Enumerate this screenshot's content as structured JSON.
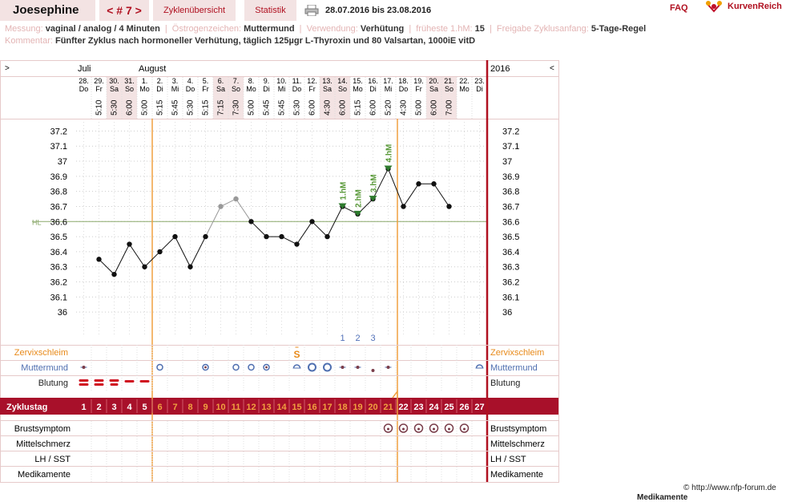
{
  "header": {
    "name": "Joesephine",
    "cycle_nav": "< # 7 >",
    "tab_overview": "Zyklenübersicht",
    "tab_stats": "Statistik",
    "date_range": "28.07.2016 bis 23.08.2016",
    "faq": "FAQ",
    "brand": "KurvenReich"
  },
  "info": {
    "messung_label": "Messung:",
    "messung_value": "vaginal / analog / 4 Minuten",
    "oestrogen_label": "Östrogenzeichen:",
    "oestrogen_value": "Muttermund",
    "verwendung_label": "Verwendung:",
    "verwendung_value": "Verhütung",
    "fruehest_label": "früheste 1.hM:",
    "fruehest_value": "15",
    "freigabe_label": "Freigabe Zyklusanfang:",
    "freigabe_value": "5-Tage-Regel",
    "kommentar_label": "Kommentar:",
    "kommentar_value": "Fünfter Zyklus nach hormoneller Verhütung, täglich 125µgr L-Thyroxin und 80 Valsartan, 1000iE vitD"
  },
  "chart_data": {
    "type": "line",
    "year": "2016",
    "nav_prev": ">",
    "nav_next": "<",
    "months": [
      {
        "label": "Juli",
        "start_index": 0
      },
      {
        "label": "August",
        "start_index": 4
      }
    ],
    "days": [
      {
        "date": "28.",
        "weekday": "Do",
        "time": "",
        "temp": null,
        "cycle_day": "1",
        "weekend": false
      },
      {
        "date": "29.",
        "weekday": "Fr",
        "time": "5:10",
        "temp": 36.35,
        "cycle_day": "2",
        "weekend": false
      },
      {
        "date": "30.",
        "weekday": "Sa",
        "time": "5:30",
        "temp": 36.25,
        "cycle_day": "3",
        "weekend": true
      },
      {
        "date": "31.",
        "weekday": "So",
        "time": "6:00",
        "temp": 36.45,
        "cycle_day": "4",
        "weekend": true
      },
      {
        "date": "1.",
        "weekday": "Mo",
        "time": "5:00",
        "temp": 36.3,
        "cycle_day": "5",
        "weekend": false
      },
      {
        "date": "2.",
        "weekday": "Di",
        "time": "5:15",
        "temp": 36.4,
        "cycle_day": "6",
        "weekend": false
      },
      {
        "date": "3.",
        "weekday": "Mi",
        "time": "5:45",
        "temp": 36.5,
        "cycle_day": "7",
        "weekend": false
      },
      {
        "date": "4.",
        "weekday": "Do",
        "time": "5:30",
        "temp": 36.3,
        "cycle_day": "8",
        "weekend": false
      },
      {
        "date": "5.",
        "weekday": "Fr",
        "time": "5:15",
        "temp": 36.5,
        "cycle_day": "9",
        "weekend": false
      },
      {
        "date": "6.",
        "weekday": "Sa",
        "time": "7:15",
        "temp": 36.7,
        "cycle_day": "10",
        "weekend": true,
        "excluded": true
      },
      {
        "date": "7.",
        "weekday": "So",
        "time": "7:30",
        "temp": 36.75,
        "cycle_day": "11",
        "weekend": true,
        "excluded": true
      },
      {
        "date": "8.",
        "weekday": "Mo",
        "time": "5:00",
        "temp": 36.6,
        "cycle_day": "12",
        "weekend": false
      },
      {
        "date": "9.",
        "weekday": "Di",
        "time": "5:45",
        "temp": 36.5,
        "cycle_day": "13",
        "weekend": false
      },
      {
        "date": "10.",
        "weekday": "Mi",
        "time": "5:45",
        "temp": 36.5,
        "cycle_day": "14",
        "weekend": false
      },
      {
        "date": "11.",
        "weekday": "Do",
        "time": "5:30",
        "temp": 36.45,
        "cycle_day": "15",
        "weekend": false
      },
      {
        "date": "12.",
        "weekday": "Fr",
        "time": "6:00",
        "temp": 36.6,
        "cycle_day": "16",
        "weekend": false
      },
      {
        "date": "13.",
        "weekday": "Sa",
        "time": "4:30",
        "temp": 36.5,
        "cycle_day": "17",
        "weekend": true
      },
      {
        "date": "14.",
        "weekday": "So",
        "time": "6:00",
        "temp": 36.7,
        "cycle_day": "18",
        "weekend": true
      },
      {
        "date": "15.",
        "weekday": "Mo",
        "time": "5:15",
        "temp": 36.65,
        "cycle_day": "19",
        "weekend": false
      },
      {
        "date": "16.",
        "weekday": "Di",
        "time": "6:00",
        "temp": 36.75,
        "cycle_day": "20",
        "weekend": false
      },
      {
        "date": "17.",
        "weekday": "Mi",
        "time": "5:20",
        "temp": 36.95,
        "cycle_day": "21",
        "weekend": false
      },
      {
        "date": "18.",
        "weekday": "Do",
        "time": "4:30",
        "temp": 36.7,
        "cycle_day": "22",
        "weekend": false
      },
      {
        "date": "19.",
        "weekday": "Fr",
        "time": "5:00",
        "temp": 36.85,
        "cycle_day": "23",
        "weekend": false
      },
      {
        "date": "20.",
        "weekday": "Sa",
        "time": "6:00",
        "temp": 36.85,
        "cycle_day": "24",
        "weekend": true
      },
      {
        "date": "21.",
        "weekday": "So",
        "time": "7:00",
        "temp": 36.7,
        "cycle_day": "25",
        "weekend": true
      },
      {
        "date": "22.",
        "weekday": "Mo",
        "time": "",
        "temp": null,
        "cycle_day": "26",
        "weekend": false
      },
      {
        "date": "23.",
        "weekday": "Di",
        "time": "",
        "temp": null,
        "cycle_day": "27",
        "weekend": false
      }
    ],
    "y_ticks": [
      "37.2",
      "37.1",
      "37",
      "36.9",
      "36.8",
      "36.7",
      "36.6",
      "36.5",
      "36.4",
      "36.3",
      "36.2",
      "36.1",
      "36"
    ],
    "y_range": [
      35.9,
      37.25
    ],
    "hl_label": "HL",
    "hl_value": 36.6,
    "markers": [
      {
        "index": 17,
        "label": "1.hM"
      },
      {
        "index": 18,
        "label": "2.hM"
      },
      {
        "index": 19,
        "label": "3.hM"
      },
      {
        "index": 20,
        "label": "4.hM"
      }
    ],
    "high_count": [
      {
        "index": 17,
        "label": "1"
      },
      {
        "index": 18,
        "label": "2"
      },
      {
        "index": 19,
        "label": "3"
      }
    ],
    "peak_symbol": {
      "index": 14,
      "label": "S"
    },
    "vertical_lines": [
      5,
      21
    ],
    "rows": {
      "cervical_mucus": "Zervixschleim",
      "cervix": "Muttermund",
      "bleeding": "Blutung",
      "cycle_day": "Zyklustag",
      "breast": "Brustsymptom",
      "pain": "Mittelschmerz",
      "lh": "LH / SST",
      "meds": "Medikamente"
    },
    "cervix_marks": [
      {
        "index": 0,
        "type": "dot"
      },
      {
        "index": 5,
        "type": "ring"
      },
      {
        "index": 8,
        "type": "ringdot"
      },
      {
        "index": 10,
        "type": "ring"
      },
      {
        "index": 11,
        "type": "ring"
      },
      {
        "index": 12,
        "type": "ringdot"
      },
      {
        "index": 14,
        "type": "cap"
      },
      {
        "index": 15,
        "type": "bigring"
      },
      {
        "index": 16,
        "type": "bigring"
      },
      {
        "index": 17,
        "type": "dot"
      },
      {
        "index": 18,
        "type": "dot"
      },
      {
        "index": 19,
        "type": "lowdot"
      },
      {
        "index": 20,
        "type": "dot"
      },
      {
        "index": 26,
        "type": "cap"
      }
    ],
    "bleeding_marks": [
      {
        "index": 0,
        "strength": 3
      },
      {
        "index": 1,
        "strength": 3
      },
      {
        "index": 2,
        "strength": 2
      },
      {
        "index": 3,
        "strength": 1
      },
      {
        "index": 4,
        "strength": 1
      }
    ],
    "breast_marks": [
      20,
      21,
      22,
      23,
      24,
      25
    ]
  },
  "footer": {
    "credit": "© http://www.nfp-forum.de",
    "cutoff": "Medikamente"
  }
}
